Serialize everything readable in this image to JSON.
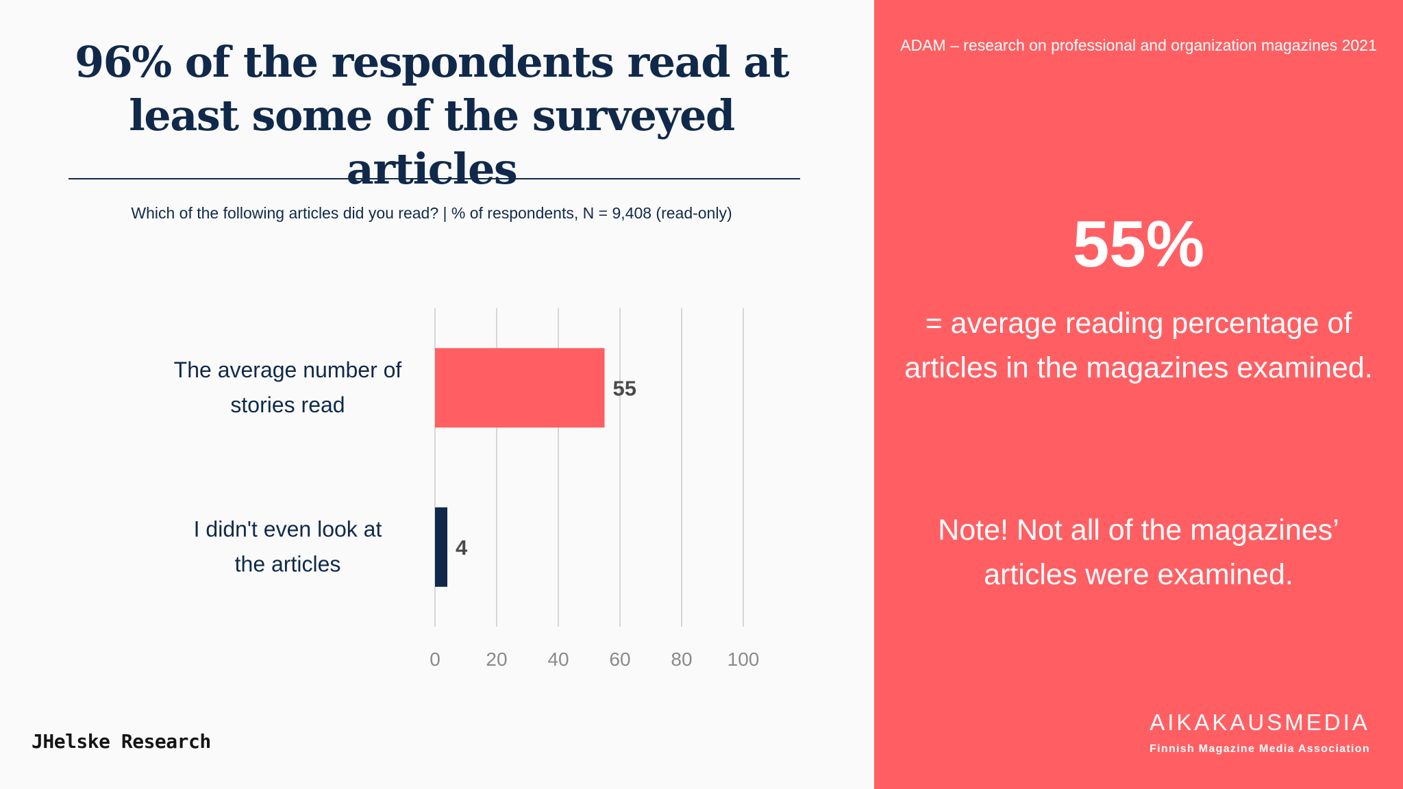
{
  "title": "96% of the respondents read at least some of the surveyed articles",
  "subtitle": "Which of the following articles did you read?  | % of respondents, N = 9,408 (read-only)",
  "brand_left": "JHelske Research",
  "side_panel": {
    "source": "ADAM – research on professional and organization magazines 2021",
    "big_stat": "55%",
    "stat_description": "= average reading percentage of articles in the magazines examined.",
    "note": "Note! Not all of the magazines’ articles were examined.",
    "logo_name": "AIKAKAUSMEDIA",
    "logo_subtitle": "Finnish Magazine Media Association"
  },
  "colors": {
    "accent": "#ff5f63",
    "navy": "#10294a",
    "grid": "#d6d6d6",
    "tick": "#8a8a8a",
    "value_label": "#4a4a4a"
  },
  "chart_data": {
    "type": "bar",
    "orientation": "horizontal",
    "categories": [
      "The average number of stories read",
      "I didn't even look at the articles"
    ],
    "values": [
      55,
      4
    ],
    "bar_colors": [
      "#ff5f63",
      "#10294a"
    ],
    "data_labels": [
      "55",
      "4"
    ],
    "xlim": [
      0,
      100
    ],
    "xticks": [
      0,
      20,
      40,
      60,
      80,
      100
    ],
    "grid": true,
    "legend": "none"
  }
}
